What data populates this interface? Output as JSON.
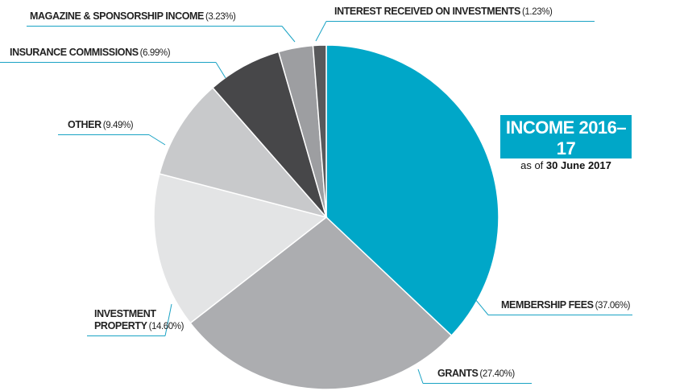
{
  "chart_data": {
    "type": "pie",
    "title": "INCOME 2016–17",
    "subtitle": "as of",
    "date": "30 June 2017",
    "categories": [
      "MEMBERSHIP FEES",
      "GRANTS",
      "INVESTMENT PROPERTY",
      "OTHER",
      "INSURANCE COMMISSIONS",
      "MAGAZINE & SPONSORSHIP INCOME",
      "INTEREST RECEIVED ON INVESTMENTS"
    ],
    "values": [
      37.06,
      27.4,
      14.6,
      9.49,
      6.99,
      3.23,
      1.23
    ],
    "value_labels": [
      "(37.06%)",
      "(27.40%)",
      "(14.60%)",
      "(9.49%)",
      "(6.99%)",
      "(3.23%)",
      "(1.23%)"
    ],
    "colors": [
      "#00a7c8",
      "#acadb0",
      "#e3e4e5",
      "#c8c9cb",
      "#474749",
      "#9d9ea1",
      "#58595b"
    ]
  }
}
